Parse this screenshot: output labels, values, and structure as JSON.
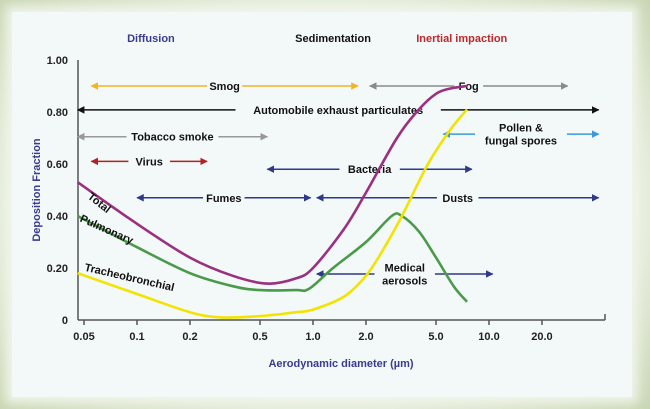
{
  "chart_data": {
    "type": "line",
    "xscale": "log",
    "xlabel": "Aerodynamic diameter (µm)",
    "ylabel": "Deposition Fraction",
    "xlim": [
      0.046,
      45
    ],
    "ylim": [
      0,
      1
    ],
    "xticks": [
      {
        "v": 0.05,
        "label": "0.05"
      },
      {
        "v": 0.1,
        "label": "0.1"
      },
      {
        "v": 0.2,
        "label": "0.2"
      },
      {
        "v": 0.5,
        "label": "0.5"
      },
      {
        "v": 1,
        "label": "1.0"
      },
      {
        "v": 2,
        "label": "2.0"
      },
      {
        "v": 5,
        "label": "5.0"
      },
      {
        "v": 10,
        "label": "10.0"
      },
      {
        "v": 20,
        "label": "20.0"
      }
    ],
    "yticks": [
      {
        "v": 0,
        "label": "0"
      },
      {
        "v": 0.2,
        "label": "0.20"
      },
      {
        "v": 0.4,
        "label": "0.40"
      },
      {
        "v": 0.6,
        "label": "0.60"
      },
      {
        "v": 0.8,
        "label": "0.80"
      },
      {
        "v": 1,
        "label": "1.00"
      }
    ],
    "regions": [
      {
        "label": "Diffusion",
        "x": 0.12,
        "color": "#3b3b8f"
      },
      {
        "label": "Sedimentation",
        "x": 1.3,
        "color": "#111111"
      },
      {
        "label": "Inertial impaction",
        "x": 7,
        "color": "#c0282d"
      }
    ],
    "series": [
      {
        "name": "Total",
        "color": "#9b2f80",
        "points": [
          [
            0.046,
            0.53
          ],
          [
            0.1,
            0.37
          ],
          [
            0.2,
            0.24
          ],
          [
            0.35,
            0.17
          ],
          [
            0.55,
            0.14
          ],
          [
            0.8,
            0.16
          ],
          [
            1.0,
            0.2
          ],
          [
            1.5,
            0.35
          ],
          [
            2,
            0.49
          ],
          [
            3,
            0.7
          ],
          [
            4,
            0.81
          ],
          [
            5,
            0.87
          ],
          [
            6,
            0.89
          ],
          [
            7.5,
            0.9
          ]
        ],
        "label_rot": 38,
        "label_at": [
          0.052,
          0.47
        ]
      },
      {
        "name": "Pulmonary",
        "color": "#4b9a4b",
        "points": [
          [
            0.046,
            0.4
          ],
          [
            0.1,
            0.28
          ],
          [
            0.2,
            0.18
          ],
          [
            0.35,
            0.13
          ],
          [
            0.5,
            0.115
          ],
          [
            0.8,
            0.115
          ],
          [
            0.95,
            0.12
          ],
          [
            1.3,
            0.2
          ],
          [
            2,
            0.3
          ],
          [
            2.8,
            0.4
          ],
          [
            3.2,
            0.4
          ],
          [
            4,
            0.34
          ],
          [
            5,
            0.24
          ],
          [
            6.3,
            0.13
          ],
          [
            7.5,
            0.07
          ]
        ],
        "label_rot": 24,
        "label_at": [
          0.047,
          0.38
        ]
      },
      {
        "name": "Tracheobronchial",
        "color": "#f2e400",
        "points": [
          [
            0.046,
            0.18
          ],
          [
            0.1,
            0.1
          ],
          [
            0.2,
            0.03
          ],
          [
            0.3,
            0.01
          ],
          [
            0.5,
            0.015
          ],
          [
            0.8,
            0.03
          ],
          [
            1.0,
            0.04
          ],
          [
            1.5,
            0.09
          ],
          [
            2,
            0.17
          ],
          [
            2.5,
            0.27
          ],
          [
            3.2,
            0.4
          ],
          [
            4.5,
            0.6
          ],
          [
            6,
            0.73
          ],
          [
            7.5,
            0.81
          ]
        ],
        "label_rot": 13,
        "label_at": [
          0.05,
          0.19
        ]
      }
    ],
    "ranges": [
      {
        "label": "Smog",
        "from": 0.055,
        "to": 1.8,
        "y": 0.9,
        "color": "#f0b429"
      },
      {
        "label": "Fog",
        "from": 2.1,
        "to": 28,
        "y": 0.9,
        "color": "#8a8a8a"
      },
      {
        "label": "Automobile exhaust particulates",
        "from": 0.046,
        "to": 42,
        "y": 0.808,
        "color": "#111111"
      },
      {
        "label": "Tobacco smoke",
        "from": 0.046,
        "to": 0.55,
        "y": 0.705,
        "color": "#999999"
      },
      {
        "label": "Pollen &|fungal spores",
        "from": 5.5,
        "to": 42,
        "y": 0.715,
        "color": "#3a9ad9"
      },
      {
        "label": "Virus",
        "from": 0.055,
        "to": 0.25,
        "y": 0.61,
        "color": "#b22222"
      },
      {
        "label": "Bacteria",
        "from": 0.55,
        "to": 8,
        "y": 0.58,
        "color": "#2e3a87"
      },
      {
        "label": "Fumes",
        "from": 0.1,
        "to": 0.97,
        "y": 0.47,
        "color": "#2e3a87"
      },
      {
        "label": "Dusts",
        "from": 1.05,
        "to": 42,
        "y": 0.47,
        "color": "#2e3a87"
      },
      {
        "label": "Medical|aerosols",
        "from": 1.05,
        "to": 10.5,
        "y": 0.177,
        "color": "#2e3a87"
      }
    ]
  }
}
